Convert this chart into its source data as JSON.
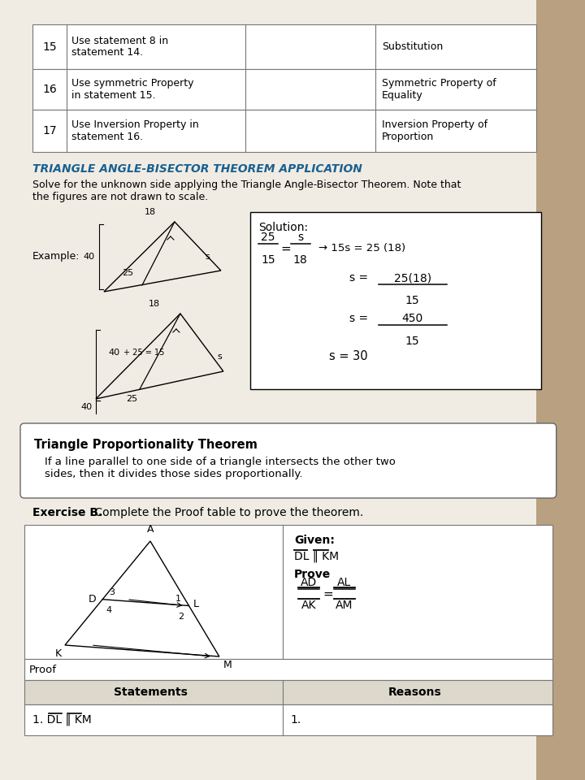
{
  "bg_color": "#c8b89a",
  "page_bg": "#f0ece4",
  "table1_rows": [
    {
      "num": "15",
      "statement": "Use statement 8 in\nstatement 14.",
      "reason": "Substitution"
    },
    {
      "num": "16",
      "statement": "Use symmetric Property\nin statement 15.",
      "reason": "Symmetric Property of\nEquality"
    },
    {
      "num": "17",
      "statement": "Use Inversion Property in\nstatement 16.",
      "reason": "Inversion Property of\nProportion"
    }
  ],
  "bisector_title": "TRIANGLE ANGLE-BISECTOR THEOREM APPLICATION",
  "bisector_subtitle": "Solve for the unknown side applying the Triangle Angle-Bisector Theorem. Note that\nthe figures are not drawn to scale.",
  "example_label": "Example:",
  "proportionality_title": "Triangle Proportionality Theorem",
  "proportionality_body": "If a line parallel to one side of a triangle intersects the other two\nsides, then it divides those sides proportionally.",
  "exercise_label": "Exercise B.",
  "exercise_label2": " Complete the Proof table to prove the theorem.",
  "given_label": "Given:",
  "prove_label": "Prove",
  "proof_label": "Proof",
  "proof_headers": [
    "Statements",
    "Reasons"
  ],
  "proof_row1_stmt": "1. DL ‖ KM",
  "proof_row1_reason": "1."
}
